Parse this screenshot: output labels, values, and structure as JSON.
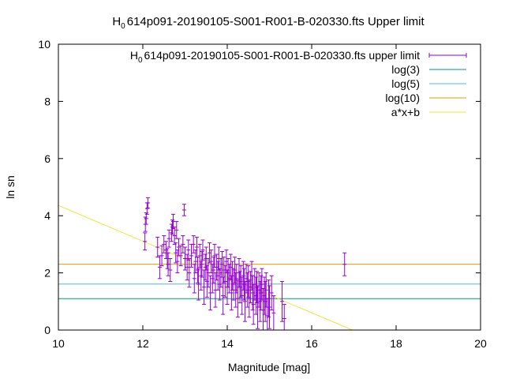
{
  "chart_data": {
    "type": "scatter",
    "title": {
      "prefix": "H",
      "sub": "0",
      "rest": "614p091-20190105-S001-R001-B-020330.fts Upper limit"
    },
    "xlabel": "Magnitude [mag]",
    "ylabel": "ln sn",
    "xlim": [
      10,
      20
    ],
    "ylim": [
      0,
      10
    ],
    "x_ticks": [
      10,
      12,
      14,
      16,
      18,
      20
    ],
    "y_ticks": [
      0,
      2,
      4,
      6,
      8,
      10
    ],
    "grid": false,
    "legend_position": "top-right",
    "series": [
      {
        "name": {
          "prefix": "H",
          "sub": "0",
          "rest": "614p091-20190105-S001-R001-B-020330.fts upper limit"
        },
        "kind": "errorbar",
        "color": "#9400d3"
      },
      {
        "name": "log(3)",
        "kind": "hline",
        "y": 1.0986,
        "color": "#009e73"
      },
      {
        "name": "log(5)",
        "kind": "hline",
        "y": 1.6094,
        "color": "#56b4e9"
      },
      {
        "name": "log(10)",
        "kind": "hline",
        "y": 2.3026,
        "color": "#e69f00"
      },
      {
        "name": "a*x+b",
        "kind": "line",
        "a": -0.626,
        "b": 10.62,
        "color": "#f0e442"
      }
    ],
    "points": [
      [
        12.05,
        3.1,
        0.3
      ],
      [
        12.06,
        3.7,
        0.25
      ],
      [
        12.08,
        3.9,
        0.2
      ],
      [
        12.1,
        4.25,
        0.2
      ],
      [
        12.12,
        4.45,
        0.18
      ],
      [
        12.35,
        2.9,
        0.35
      ],
      [
        12.4,
        2.2,
        0.4
      ],
      [
        12.45,
        2.6,
        0.35
      ],
      [
        12.5,
        3.0,
        0.3
      ],
      [
        12.55,
        2.8,
        0.3
      ],
      [
        12.58,
        2.5,
        0.35
      ],
      [
        12.6,
        2.3,
        0.4
      ],
      [
        12.62,
        3.2,
        0.3
      ],
      [
        12.65,
        2.1,
        0.4
      ],
      [
        12.68,
        3.4,
        0.3
      ],
      [
        12.7,
        3.6,
        0.25
      ],
      [
        12.72,
        3.8,
        0.25
      ],
      [
        12.75,
        3.3,
        0.3
      ],
      [
        12.78,
        2.7,
        0.35
      ],
      [
        12.8,
        3.5,
        0.3
      ],
      [
        12.82,
        2.4,
        0.4
      ],
      [
        12.85,
        2.9,
        0.3
      ],
      [
        12.9,
        2.6,
        0.35
      ],
      [
        12.95,
        3.0,
        0.3
      ],
      [
        12.98,
        4.2,
        0.2
      ],
      [
        13.0,
        2.5,
        0.4
      ],
      [
        13.05,
        2.2,
        0.45
      ],
      [
        13.08,
        2.8,
        0.35
      ],
      [
        13.1,
        2.0,
        0.5
      ],
      [
        13.15,
        2.6,
        0.4
      ],
      [
        13.2,
        3.0,
        0.3
      ],
      [
        13.22,
        1.8,
        0.5
      ],
      [
        13.25,
        2.4,
        0.4
      ],
      [
        13.28,
        2.9,
        0.35
      ],
      [
        13.3,
        2.1,
        0.45
      ],
      [
        13.32,
        1.6,
        0.55
      ],
      [
        13.35,
        2.6,
        0.4
      ],
      [
        13.38,
        1.9,
        0.5
      ],
      [
        13.4,
        2.3,
        0.45
      ],
      [
        13.42,
        2.8,
        0.35
      ],
      [
        13.45,
        1.5,
        0.6
      ],
      [
        13.48,
        2.2,
        0.45
      ],
      [
        13.5,
        2.5,
        0.4
      ],
      [
        13.52,
        1.7,
        0.55
      ],
      [
        13.55,
        2.0,
        0.5
      ],
      [
        13.58,
        2.7,
        0.35
      ],
      [
        13.6,
        1.3,
        0.6
      ],
      [
        13.62,
        2.4,
        0.4
      ],
      [
        13.65,
        1.8,
        0.5
      ],
      [
        13.68,
        2.1,
        0.45
      ],
      [
        13.7,
        2.6,
        0.4
      ],
      [
        13.72,
        1.4,
        0.6
      ],
      [
        13.75,
        2.2,
        0.45
      ],
      [
        13.78,
        1.9,
        0.5
      ],
      [
        13.8,
        2.5,
        0.4
      ],
      [
        13.82,
        1.6,
        0.55
      ],
      [
        13.85,
        2.0,
        0.5
      ],
      [
        13.88,
        2.3,
        0.45
      ],
      [
        13.9,
        1.2,
        0.65
      ],
      [
        13.92,
        2.1,
        0.45
      ],
      [
        13.95,
        1.7,
        0.55
      ],
      [
        13.98,
        2.4,
        0.4
      ],
      [
        14.0,
        1.5,
        0.6
      ],
      [
        14.02,
        2.0,
        0.5
      ],
      [
        14.05,
        1.8,
        0.5
      ],
      [
        14.08,
        2.2,
        0.45
      ],
      [
        14.1,
        1.3,
        0.6
      ],
      [
        14.12,
        1.9,
        0.5
      ],
      [
        14.15,
        1.6,
        0.55
      ],
      [
        14.18,
        2.1,
        0.45
      ],
      [
        14.2,
        1.4,
        0.6
      ],
      [
        14.22,
        1.8,
        0.5
      ],
      [
        14.25,
        1.1,
        0.65
      ],
      [
        14.28,
        2.0,
        0.5
      ],
      [
        14.3,
        1.5,
        0.55
      ],
      [
        14.32,
        1.7,
        0.55
      ],
      [
        14.35,
        1.2,
        0.65
      ],
      [
        14.38,
        1.9,
        0.5
      ],
      [
        14.4,
        1.6,
        0.55
      ],
      [
        14.42,
        1.0,
        0.7
      ],
      [
        14.45,
        1.8,
        0.5
      ],
      [
        14.48,
        1.4,
        0.6
      ],
      [
        14.5,
        1.7,
        0.55
      ],
      [
        14.52,
        1.1,
        0.65
      ],
      [
        14.55,
        1.5,
        0.55
      ],
      [
        14.58,
        1.9,
        0.5
      ],
      [
        14.6,
        1.3,
        0.6
      ],
      [
        14.62,
        0.9,
        0.7
      ],
      [
        14.65,
        1.6,
        0.55
      ],
      [
        14.68,
        1.2,
        0.65
      ],
      [
        14.7,
        1.5,
        0.55
      ],
      [
        14.72,
        0.8,
        0.75
      ],
      [
        14.75,
        1.4,
        0.6
      ],
      [
        14.78,
        1.0,
        0.7
      ],
      [
        14.8,
        1.3,
        0.6
      ],
      [
        14.82,
        1.6,
        0.55
      ],
      [
        14.85,
        0.7,
        0.75
      ],
      [
        14.88,
        1.2,
        0.65
      ],
      [
        14.9,
        1.0,
        0.7
      ],
      [
        14.92,
        1.4,
        0.6
      ],
      [
        14.95,
        0.5,
        0.6
      ],
      [
        14.98,
        1.1,
        0.65
      ],
      [
        15.0,
        0.8,
        0.75
      ],
      [
        15.05,
        1.3,
        0.6
      ],
      [
        15.1,
        0.6,
        0.6
      ],
      [
        15.3,
        1.0,
        0.7
      ],
      [
        15.35,
        0.4,
        0.5
      ],
      [
        16.78,
        2.3,
        0.4
      ]
    ]
  }
}
